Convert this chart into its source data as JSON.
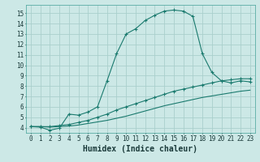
{
  "xlabel": "Humidex (Indice chaleur)",
  "ylabel": "",
  "bg_color": "#cce8e6",
  "grid_color": "#aacfcc",
  "line_color": "#1a7a6e",
  "xlim": [
    -0.5,
    23.5
  ],
  "ylim": [
    3.5,
    15.8
  ],
  "xticks": [
    0,
    1,
    2,
    3,
    4,
    5,
    6,
    7,
    8,
    9,
    10,
    11,
    12,
    13,
    14,
    15,
    16,
    17,
    18,
    19,
    20,
    21,
    22,
    23
  ],
  "yticks": [
    4,
    5,
    6,
    7,
    8,
    9,
    10,
    11,
    12,
    13,
    14,
    15
  ],
  "curve1_x": [
    0,
    1,
    2,
    3,
    4,
    5,
    6,
    7,
    8,
    9,
    10,
    11,
    12,
    13,
    14,
    15,
    16,
    17,
    18,
    19,
    20,
    21,
    22,
    23
  ],
  "curve1_y": [
    4.1,
    4.05,
    3.75,
    3.95,
    5.3,
    5.2,
    5.5,
    6.0,
    8.5,
    11.1,
    13.0,
    13.5,
    14.3,
    14.8,
    15.2,
    15.3,
    15.2,
    14.7,
    11.1,
    9.3,
    8.5,
    8.3,
    8.5,
    8.4
  ],
  "curve2_x": [
    0,
    1,
    2,
    3,
    4,
    5,
    6,
    7,
    8,
    9,
    10,
    11,
    12,
    13,
    14,
    15,
    16,
    17,
    18,
    19,
    20,
    21,
    22,
    23
  ],
  "curve2_y": [
    4.1,
    4.1,
    4.1,
    4.2,
    4.3,
    4.5,
    4.7,
    5.0,
    5.3,
    5.7,
    6.0,
    6.3,
    6.6,
    6.9,
    7.2,
    7.5,
    7.7,
    7.9,
    8.1,
    8.3,
    8.5,
    8.6,
    8.7,
    8.7
  ],
  "curve3_x": [
    0,
    1,
    2,
    3,
    4,
    5,
    6,
    7,
    8,
    9,
    10,
    11,
    12,
    13,
    14,
    15,
    16,
    17,
    18,
    19,
    20,
    21,
    22,
    23
  ],
  "curve3_y": [
    4.1,
    4.1,
    4.05,
    4.1,
    4.15,
    4.25,
    4.4,
    4.55,
    4.7,
    4.9,
    5.1,
    5.35,
    5.6,
    5.85,
    6.1,
    6.3,
    6.5,
    6.7,
    6.9,
    7.05,
    7.2,
    7.35,
    7.5,
    7.6
  ],
  "tick_fontsize": 5.5,
  "xlabel_fontsize": 7
}
